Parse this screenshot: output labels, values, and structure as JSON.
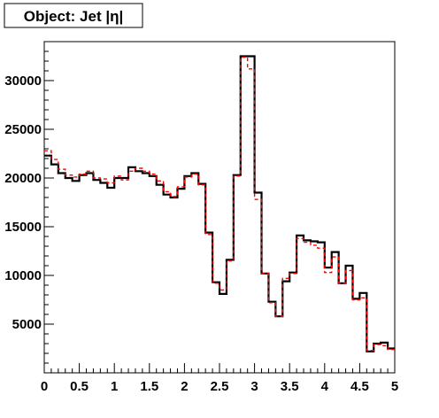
{
  "chart_data": {
    "type": "step-line",
    "title": "Object: Jet |η|",
    "xlabel": "",
    "ylabel": "",
    "xlim": [
      0,
      5
    ],
    "ylim": [
      0,
      34000
    ],
    "x_ticks": [
      {
        "value": 0,
        "label": "0"
      },
      {
        "value": 0.5,
        "label": "0.5"
      },
      {
        "value": 1,
        "label": "1"
      },
      {
        "value": 1.5,
        "label": "1.5"
      },
      {
        "value": 2,
        "label": "2"
      },
      {
        "value": 2.5,
        "label": "2.5"
      },
      {
        "value": 3,
        "label": "3"
      },
      {
        "value": 3.5,
        "label": "3.5"
      },
      {
        "value": 4,
        "label": "4"
      },
      {
        "value": 4.5,
        "label": "4.5"
      },
      {
        "value": 5,
        "label": "5"
      }
    ],
    "y_ticks": [
      {
        "value": 5000,
        "label": "5000"
      },
      {
        "value": 10000,
        "label": "10000"
      },
      {
        "value": 15000,
        "label": "15000"
      },
      {
        "value": 20000,
        "label": "20000"
      },
      {
        "value": 25000,
        "label": "25000"
      },
      {
        "value": 30000,
        "label": "30000"
      }
    ],
    "bin_width": 0.1,
    "grid": false,
    "legend": "none",
    "series": [
      {
        "color": "#000000",
        "style": "solid",
        "values": [
          22300,
          21400,
          20500,
          20000,
          19700,
          20300,
          20500,
          19800,
          19500,
          19000,
          20000,
          20000,
          21100,
          20700,
          20500,
          20200,
          19300,
          18300,
          18000,
          18900,
          20200,
          20500,
          19400,
          14400,
          9300,
          8100,
          11600,
          20300,
          32500,
          32500,
          18500,
          10200,
          7300,
          5800,
          9400,
          10300,
          14100,
          13600,
          13500,
          13400,
          10800,
          12400,
          9200,
          11000,
          7600,
          8200,
          2200,
          3000,
          3100,
          2500
        ]
      },
      {
        "color": "#ff0000",
        "style": "dashed",
        "values": [
          22800,
          21900,
          20900,
          20300,
          20100,
          20400,
          20700,
          20000,
          19900,
          19500,
          20200,
          19800,
          20700,
          21000,
          20700,
          20400,
          19700,
          18600,
          18100,
          19100,
          20100,
          20400,
          19300,
          14200,
          9200,
          8500,
          11500,
          20200,
          32400,
          31200,
          17800,
          10200,
          7200,
          5800,
          9700,
          10200,
          13800,
          13400,
          13100,
          12800,
          10300,
          11900,
          9200,
          10500,
          7500,
          7700,
          2300,
          2900,
          2800,
          2400
        ]
      }
    ]
  }
}
